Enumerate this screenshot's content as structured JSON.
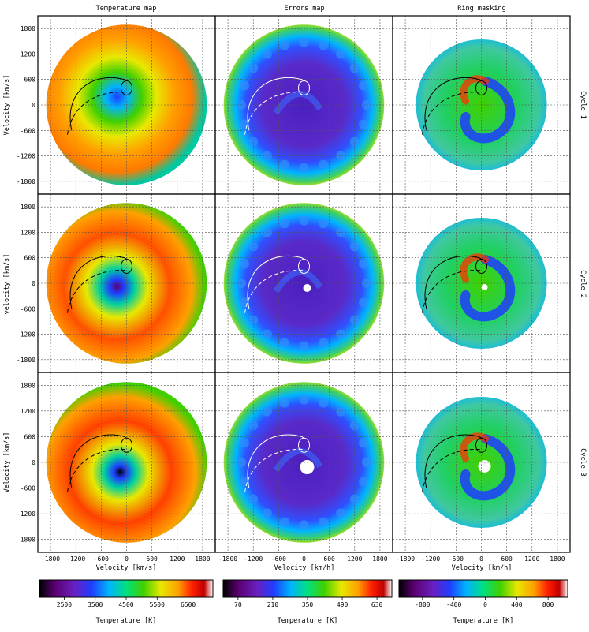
{
  "chart_data": {
    "type": "heatmap",
    "columns": [
      "Temperature map",
      "Errors map",
      "Ring masking"
    ],
    "rows": [
      "Cycle 1",
      "Cycle 2",
      "Cycle 3"
    ],
    "y_axis": {
      "labels": [
        "Velocity [km/s]",
        "velocity [km/s]",
        "Velocity [km/s]"
      ],
      "ticks": [
        -1800,
        -1200,
        -600,
        0,
        600,
        1200,
        1800
      ],
      "range": [
        -2100,
        2100
      ]
    },
    "x_axis": {
      "labels": [
        "Velocity [km/s]",
        "Velocity [km/h]",
        "Velocity [km/h]"
      ],
      "ticks": [
        -1800,
        -1200,
        -600,
        0,
        600,
        1200,
        1800
      ],
      "range": [
        -2100,
        2100
      ]
    },
    "grid": true,
    "colorbars": [
      {
        "label": "Temperature [K]",
        "ticks": [
          2500,
          3500,
          4500,
          5500,
          6500
        ],
        "range": [
          1700,
          7300
        ]
      },
      {
        "label": "Temperature [K]",
        "ticks": [
          70,
          210,
          350,
          490,
          630
        ],
        "range": [
          10,
          690
        ]
      },
      {
        "label": "Temperature [K]",
        "ticks": [
          -800,
          -400,
          0,
          400,
          800
        ],
        "range": [
          -1100,
          1050
        ]
      }
    ],
    "colormap": [
      "#000000",
      "#5a0070",
      "#6a1fbf",
      "#1f3dff",
      "#00b4ff",
      "#00e080",
      "#40d000",
      "#e8e800",
      "#ffa000",
      "#ff2000",
      "#c00000",
      "#ffffff"
    ]
  }
}
